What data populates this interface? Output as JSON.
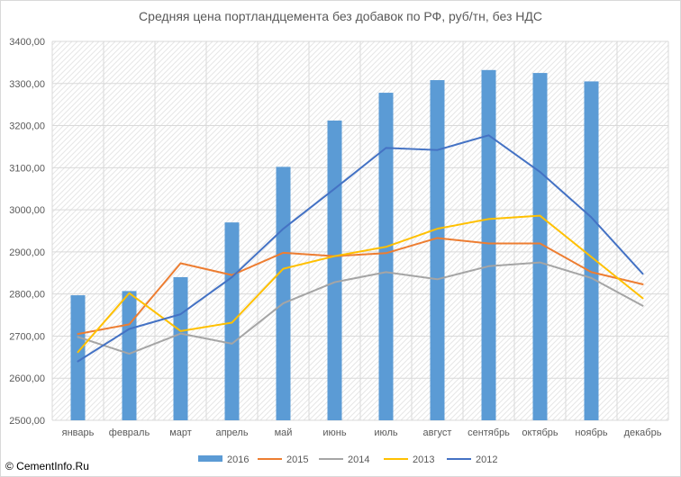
{
  "chart_data": {
    "type": "bar",
    "title": "Средняя цена портландцемента без добавок по РФ, руб/тн, без НДС",
    "categories": [
      "январь",
      "февраль",
      "март",
      "апрель",
      "май",
      "июнь",
      "июль",
      "август",
      "сентябрь",
      "октябрь",
      "ноябрь",
      "декабрь"
    ],
    "ylim": [
      2500,
      3400
    ],
    "yticks": [
      "2500,00",
      "2600,00",
      "2700,00",
      "2800,00",
      "2900,00",
      "3000,00",
      "3100,00",
      "3200,00",
      "3300,00",
      "3400,00"
    ],
    "grid": "vertical hatched background",
    "legend_position": "bottom",
    "series": [
      {
        "name": "2016",
        "kind": "bar",
        "color": "#5b9bd5",
        "values": [
          2797,
          2807,
          2840,
          2970,
          3102,
          3212,
          3278,
          3308,
          3332,
          3325,
          3305,
          null
        ]
      },
      {
        "name": "2015",
        "kind": "line",
        "color": "#ed7d31",
        "values": [
          2705,
          2728,
          2873,
          2845,
          2898,
          2890,
          2897,
          2933,
          2920,
          2920,
          2852,
          2823
        ]
      },
      {
        "name": "2014",
        "kind": "line",
        "color": "#a5a5a5",
        "values": [
          2698,
          2658,
          2706,
          2682,
          2778,
          2828,
          2852,
          2835,
          2866,
          2875,
          2838,
          2772
        ]
      },
      {
        "name": "2013",
        "kind": "line",
        "color": "#ffc000",
        "values": [
          2662,
          2802,
          2712,
          2732,
          2860,
          2890,
          2912,
          2955,
          2978,
          2986,
          2888,
          2790
        ]
      },
      {
        "name": "2012",
        "kind": "line",
        "color": "#4472c4",
        "values": [
          2640,
          2717,
          2752,
          2840,
          2955,
          3050,
          3147,
          3142,
          3177,
          3090,
          2982,
          2848
        ]
      }
    ]
  },
  "copyright": "© CementInfo.Ru"
}
